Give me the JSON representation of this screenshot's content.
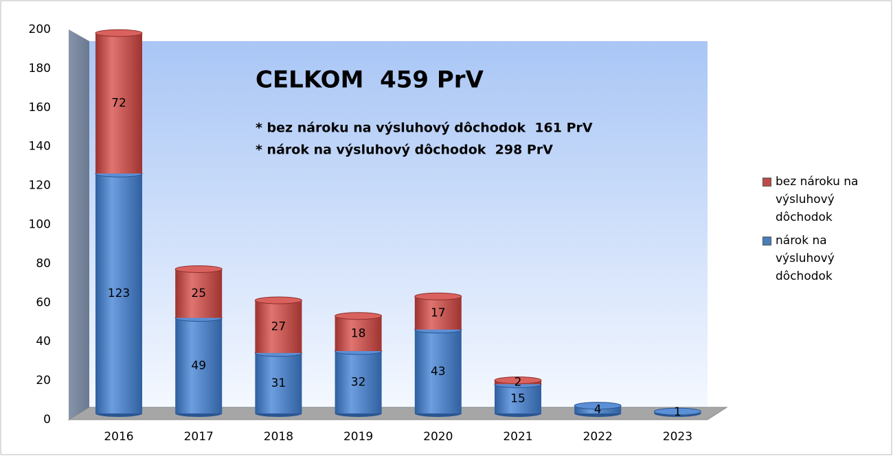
{
  "chart_data": {
    "type": "bar",
    "stacked": true,
    "categories": [
      "2016",
      "2017",
      "2018",
      "2019",
      "2020",
      "2021",
      "2022",
      "2023"
    ],
    "series": [
      {
        "name": "nárok na výsluhový dôchodok",
        "color": "#4a7ebb",
        "values": [
          123,
          49,
          31,
          32,
          43,
          15,
          4,
          1
        ]
      },
      {
        "name": "bez nároku na výsluhový dôchodok",
        "color": "#be4b48",
        "values": [
          72,
          25,
          27,
          18,
          17,
          2,
          null,
          null
        ]
      }
    ],
    "annotations": [
      "CELKOM  459 PrV",
      "* bez nároku na výsluhový dôchodok  161 PrV",
      "* nárok na výsluhový dôchodok  298 PrV"
    ],
    "ylim": [
      0,
      200
    ],
    "yticks": [
      0,
      20,
      40,
      60,
      80,
      100,
      120,
      140,
      160,
      180,
      200
    ],
    "grid": false,
    "legend": "right"
  }
}
